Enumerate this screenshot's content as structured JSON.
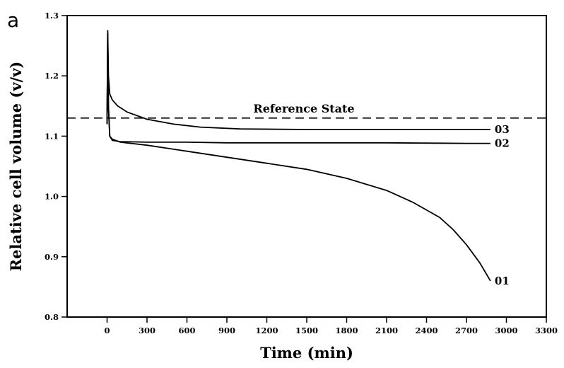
{
  "panel_label": "a",
  "chart_data": {
    "type": "line",
    "xlabel": "Time (min)",
    "ylabel": "Relative cell volume (v/v)",
    "xlim": [
      -300,
      3300
    ],
    "ylim": [
      0.8,
      1.3
    ],
    "x_ticks": [
      0,
      300,
      600,
      900,
      1200,
      1500,
      1800,
      2100,
      2400,
      2700,
      3000,
      3300
    ],
    "y_ticks": [
      0.8,
      0.9,
      1.0,
      1.1,
      1.2,
      1.3
    ],
    "y_tick_labels": [
      "0.8",
      "0.9",
      "1.0",
      "1.1",
      "1.2",
      "1.3"
    ],
    "grid": false,
    "reference_line": {
      "label": "Reference State",
      "y": 1.13,
      "style": "dashed"
    },
    "series": [
      {
        "name": "01",
        "x": [
          0,
          5,
          10,
          20,
          40,
          100,
          300,
          600,
          900,
          1200,
          1500,
          1800,
          2100,
          2300,
          2500,
          2600,
          2700,
          2800,
          2880
        ],
        "y": [
          1.12,
          1.27,
          1.15,
          1.1,
          1.095,
          1.09,
          1.085,
          1.075,
          1.065,
          1.055,
          1.045,
          1.03,
          1.01,
          0.99,
          0.965,
          0.945,
          0.92,
          0.89,
          0.86
        ]
      },
      {
        "name": "02",
        "x": [
          0,
          5,
          10,
          20,
          40,
          100,
          300,
          600,
          900,
          1500,
          2100,
          2700,
          2880
        ],
        "y": [
          1.12,
          1.27,
          1.15,
          1.1,
          1.093,
          1.091,
          1.09,
          1.09,
          1.089,
          1.089,
          1.089,
          1.088,
          1.088
        ]
      },
      {
        "name": "03",
        "x": [
          0,
          5,
          10,
          20,
          40,
          80,
          150,
          300,
          500,
          700,
          1000,
          1500,
          2100,
          2700,
          2880
        ],
        "y": [
          1.12,
          1.275,
          1.2,
          1.17,
          1.16,
          1.15,
          1.14,
          1.128,
          1.12,
          1.115,
          1.112,
          1.111,
          1.111,
          1.111,
          1.111
        ]
      }
    ]
  }
}
